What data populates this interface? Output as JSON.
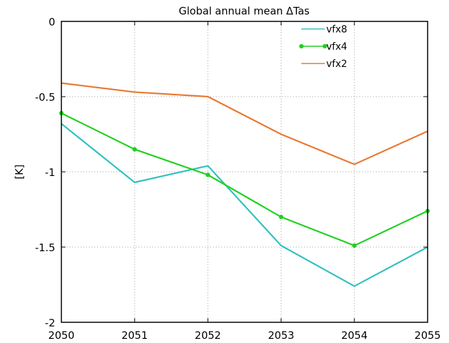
{
  "chart_data": {
    "type": "line",
    "title": "Global annual mean ΔTas",
    "xlabel": "",
    "ylabel": "[K]",
    "x": [
      2050,
      2051,
      2052,
      2053,
      2054,
      2055
    ],
    "xlim": [
      2050,
      2055
    ],
    "ylim": [
      -2,
      0
    ],
    "xticks": [
      "2050",
      "2051",
      "2052",
      "2053",
      "2054",
      "2055"
    ],
    "yticks": [
      {
        "value": 0,
        "label": "0"
      },
      {
        "value": -0.5,
        "label": "-0.5"
      },
      {
        "value": -1,
        "label": "-1"
      },
      {
        "value": -1.5,
        "label": "-1.5"
      },
      {
        "value": -2,
        "label": "-2"
      }
    ],
    "grid": true,
    "legend_position": "top-right",
    "series": [
      {
        "name": "vfx8",
        "color": "#30c0c0",
        "marker": false,
        "values": [
          -0.68,
          -1.07,
          -0.96,
          -1.49,
          -1.76,
          -1.5
        ]
      },
      {
        "name": "vfx4",
        "color": "#20d020",
        "marker": true,
        "values": [
          -0.61,
          -0.85,
          -1.02,
          -1.3,
          -1.49,
          -1.26
        ]
      },
      {
        "name": "vfx2",
        "color": "#e87830",
        "marker": false,
        "values": [
          -0.41,
          -0.47,
          -0.5,
          -0.75,
          -0.95,
          -0.73
        ]
      }
    ]
  }
}
